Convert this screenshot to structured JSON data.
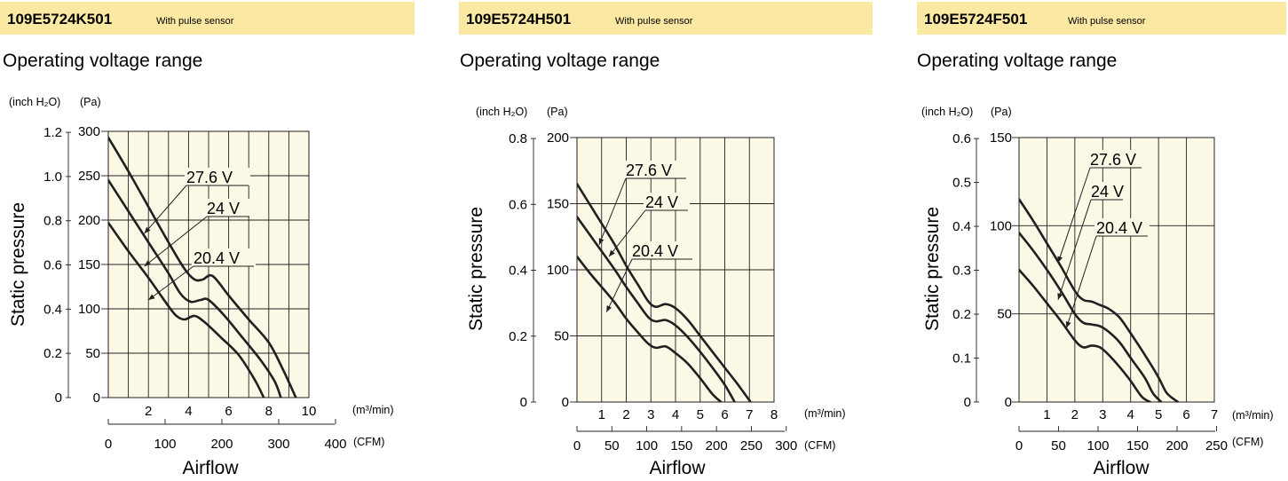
{
  "charts": [
    {
      "model": "109E5724K501",
      "subtitle": "With pulse sensor",
      "section": "Operating voltage range",
      "unit_left": "(inch H₂O)",
      "unit_right": "(Pa)",
      "ylabel": "Static pressure",
      "xlabel": "Airflow",
      "x_unit_top": "(m³/min)",
      "x_unit_bottom": "(CFM)",
      "yticks_pa": [
        "0",
        "50",
        "100",
        "150",
        "200",
        "250",
        "300"
      ],
      "yticks_inch": [
        "0",
        "0.2",
        "0.4",
        "0.6",
        "0.8",
        "1.0",
        "1.2"
      ],
      "xticks_m3": [
        "2",
        "4",
        "6",
        "8",
        "10"
      ],
      "xticks_cfm": [
        "0",
        "100",
        "200",
        "300",
        "400"
      ],
      "series_labels": [
        "27.6 V",
        "24 V",
        "20.4 V"
      ]
    },
    {
      "model": "109E5724H501",
      "subtitle": "With pulse sensor",
      "section": "Operating voltage range",
      "unit_left": "(inch H₂O)",
      "unit_right": "(Pa)",
      "ylabel": "Static pressure",
      "xlabel": "Airflow",
      "x_unit_top": "(m³/min)",
      "x_unit_bottom": "(CFM)",
      "yticks_pa": [
        "0",
        "50",
        "100",
        "150",
        "200"
      ],
      "yticks_inch": [
        "0",
        "0.2",
        "0.4",
        "0.6",
        "0.8"
      ],
      "xticks_m3": [
        "1",
        "2",
        "3",
        "4",
        "5",
        "6",
        "7",
        "8"
      ],
      "xticks_cfm": [
        "0",
        "50",
        "100",
        "150",
        "200",
        "250",
        "300"
      ],
      "series_labels": [
        "27.6 V",
        "24 V",
        "20.4 V"
      ]
    },
    {
      "model": "109E5724F501",
      "subtitle": "With pulse sensor",
      "section": "Operating voltage range",
      "unit_left": "(inch H₂O)",
      "unit_right": "(Pa)",
      "ylabel": "Static pressure",
      "xlabel": "Airflow",
      "x_unit_top": "(m³/min)",
      "x_unit_bottom": "(CFM)",
      "yticks_pa": [
        "0",
        "50",
        "100",
        "150"
      ],
      "yticks_inch": [
        "0",
        "0.1",
        "0.2",
        "0.3",
        "0.4",
        "0.5",
        "0.6"
      ],
      "xticks_m3": [
        "1",
        "2",
        "3",
        "4",
        "5",
        "6",
        "7"
      ],
      "xticks_cfm": [
        "0",
        "50",
        "100",
        "150",
        "200",
        "250"
      ],
      "series_labels": [
        "27.6 V",
        "24 V",
        "20.4 V"
      ]
    }
  ],
  "chart_data": [
    {
      "type": "line",
      "title": "109E5724K501",
      "xlabel": "Airflow (m³/min)",
      "ylabel": "Static pressure (Pa)",
      "xlim": [
        0,
        10
      ],
      "ylim": [
        0,
        300
      ],
      "grid": true,
      "series": [
        {
          "name": "27.6 V",
          "x": [
            0,
            1,
            2,
            3,
            3.8,
            4.3,
            4.7,
            5.2,
            6,
            7,
            8,
            8.7,
            9.35
          ],
          "y": [
            293,
            255,
            215,
            175,
            145,
            133,
            133,
            137,
            115,
            88,
            62,
            32,
            0
          ]
        },
        {
          "name": "24 V",
          "x": [
            0,
            1,
            2,
            3,
            3.6,
            4.1,
            4.6,
            5.0,
            5.8,
            6.6,
            7.6,
            8.3,
            8.6
          ],
          "y": [
            245,
            210,
            175,
            140,
            117,
            108,
            110,
            110,
            92,
            70,
            42,
            18,
            0
          ]
        },
        {
          "name": "20.4 V",
          "x": [
            0,
            1,
            2,
            3,
            3.4,
            3.8,
            4.3,
            4.8,
            5.6,
            6.5,
            7.3,
            7.75
          ],
          "y": [
            197,
            165,
            135,
            103,
            92,
            88,
            92,
            85,
            68,
            48,
            20,
            0
          ]
        }
      ]
    },
    {
      "type": "line",
      "title": "109E5724H501",
      "xlabel": "Airflow (m³/min)",
      "ylabel": "Static pressure (Pa)",
      "xlim": [
        0,
        8
      ],
      "ylim": [
        0,
        200
      ],
      "grid": true,
      "series": [
        {
          "name": "27.6 V",
          "x": [
            0,
            0.5,
            1,
            1.5,
            2,
            2.5,
            2.9,
            3.2,
            3.6,
            4,
            4.5,
            5,
            5.5,
            6,
            6.5,
            7.05
          ],
          "y": [
            165,
            150,
            135,
            120,
            103,
            88,
            76,
            72,
            74,
            71,
            62,
            50,
            38,
            26,
            14,
            0
          ]
        },
        {
          "name": "24 V",
          "x": [
            0,
            0.5,
            1,
            1.5,
            2,
            2.5,
            2.9,
            3.2,
            3.6,
            4,
            4.5,
            5,
            5.5,
            6,
            6.4
          ],
          "y": [
            140,
            127,
            114,
            101,
            87,
            74,
            64,
            61,
            62,
            58,
            49,
            38,
            26,
            13,
            0
          ]
        },
        {
          "name": "20.4 V",
          "x": [
            0,
            0.5,
            1,
            1.5,
            2,
            2.5,
            2.9,
            3.2,
            3.6,
            4,
            4.5,
            5,
            5.5,
            5.85
          ],
          "y": [
            110,
            98,
            87,
            76,
            63,
            52,
            44,
            41,
            42,
            37,
            29,
            18,
            6,
            0
          ]
        }
      ]
    },
    {
      "type": "line",
      "title": "109E5724F501",
      "xlabel": "Airflow (m³/min)",
      "ylabel": "Static pressure (Pa)",
      "xlim": [
        0,
        7
      ],
      "ylim": [
        0,
        150
      ],
      "grid": true,
      "series": [
        {
          "name": "27.6 V",
          "x": [
            0,
            0.5,
            1,
            1.5,
            2,
            2.3,
            2.6,
            2.9,
            3.2,
            3.6,
            4,
            4.5,
            5,
            5.3,
            5.7
          ],
          "y": [
            115,
            103,
            90,
            77,
            63,
            58,
            57,
            55,
            53,
            48,
            39,
            27,
            14,
            5,
            0
          ]
        },
        {
          "name": "24 V",
          "x": [
            0,
            0.5,
            1,
            1.5,
            2,
            2.3,
            2.6,
            2.9,
            3.2,
            3.6,
            4,
            4.5,
            4.8,
            5.1
          ],
          "y": [
            96,
            86,
            75,
            63,
            50,
            45,
            44,
            43,
            40,
            34,
            25,
            14,
            5,
            0
          ]
        },
        {
          "name": "20.4 V",
          "x": [
            0,
            0.5,
            1,
            1.5,
            2,
            2.3,
            2.6,
            2.9,
            3.2,
            3.6,
            4,
            4.4,
            4.7
          ],
          "y": [
            75,
            66,
            56,
            46,
            35,
            31,
            32,
            31,
            27,
            20,
            12,
            3,
            0
          ]
        }
      ]
    }
  ]
}
